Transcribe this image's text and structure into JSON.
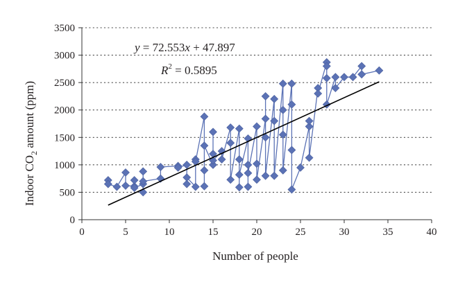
{
  "chart_data": {
    "type": "scatter",
    "xlabel": "Number of people",
    "ylabel_prefix": "Indoor CO",
    "ylabel_sub": "2",
    "ylabel_suffix": " amount (ppm)",
    "xlim": [
      0,
      40
    ],
    "ylim": [
      0,
      3500
    ],
    "x_ticks": [
      0,
      5,
      10,
      15,
      20,
      25,
      30,
      35,
      40
    ],
    "y_ticks": [
      0,
      500,
      1000,
      1500,
      2000,
      2500,
      3000,
      3500
    ],
    "grid": "horizontal dotted",
    "legend": "none",
    "series_color": "#5b72b5",
    "trendline_color": "#000000",
    "trendline": {
      "slope": 72.553,
      "intercept": 47.897,
      "x_range": [
        3,
        34
      ]
    },
    "equation_label": {
      "y": "y",
      "eq": " = 72.553",
      "x": "x",
      "rest": " + 47.897"
    },
    "r2_label": {
      "R": "R",
      "sup": "2",
      "rest": " = 0.5895"
    },
    "points": [
      {
        "x": 3,
        "y": 720
      },
      {
        "x": 3,
        "y": 650
      },
      {
        "x": 4,
        "y": 600
      },
      {
        "x": 5,
        "y": 860
      },
      {
        "x": 5,
        "y": 620
      },
      {
        "x": 6,
        "y": 610
      },
      {
        "x": 6,
        "y": 720
      },
      {
        "x": 6,
        "y": 580
      },
      {
        "x": 7,
        "y": 650
      },
      {
        "x": 7,
        "y": 500
      },
      {
        "x": 7,
        "y": 880
      },
      {
        "x": 7,
        "y": 700
      },
      {
        "x": 9,
        "y": 750
      },
      {
        "x": 9,
        "y": 960
      },
      {
        "x": 11,
        "y": 980
      },
      {
        "x": 11,
        "y": 950
      },
      {
        "x": 12,
        "y": 1000
      },
      {
        "x": 12,
        "y": 650
      },
      {
        "x": 12,
        "y": 770
      },
      {
        "x": 13,
        "y": 600
      },
      {
        "x": 13,
        "y": 1100
      },
      {
        "x": 13,
        "y": 1060
      },
      {
        "x": 14,
        "y": 1880
      },
      {
        "x": 14,
        "y": 900
      },
      {
        "x": 14,
        "y": 610
      },
      {
        "x": 14,
        "y": 1350
      },
      {
        "x": 15,
        "y": 1000
      },
      {
        "x": 15,
        "y": 1600
      },
      {
        "x": 15,
        "y": 1200
      },
      {
        "x": 15,
        "y": 1080
      },
      {
        "x": 16,
        "y": 1250
      },
      {
        "x": 16,
        "y": 1100
      },
      {
        "x": 17,
        "y": 1680
      },
      {
        "x": 17,
        "y": 1400
      },
      {
        "x": 17,
        "y": 730
      },
      {
        "x": 18,
        "y": 1660
      },
      {
        "x": 18,
        "y": 1100
      },
      {
        "x": 18,
        "y": 590
      },
      {
        "x": 18,
        "y": 820
      },
      {
        "x": 19,
        "y": 1480
      },
      {
        "x": 19,
        "y": 1000
      },
      {
        "x": 19,
        "y": 600
      },
      {
        "x": 19,
        "y": 850
      },
      {
        "x": 20,
        "y": 1700
      },
      {
        "x": 20,
        "y": 1020
      },
      {
        "x": 20,
        "y": 730
      },
      {
        "x": 21,
        "y": 1840
      },
      {
        "x": 21,
        "y": 2250
      },
      {
        "x": 21,
        "y": 1500
      },
      {
        "x": 21,
        "y": 800
      },
      {
        "x": 22,
        "y": 2200
      },
      {
        "x": 22,
        "y": 1800
      },
      {
        "x": 22,
        "y": 800
      },
      {
        "x": 23,
        "y": 2480
      },
      {
        "x": 23,
        "y": 2000
      },
      {
        "x": 23,
        "y": 1550
      },
      {
        "x": 23,
        "y": 900
      },
      {
        "x": 24,
        "y": 2480
      },
      {
        "x": 24,
        "y": 2100
      },
      {
        "x": 24,
        "y": 1270
      },
      {
        "x": 24,
        "y": 550
      },
      {
        "x": 25,
        "y": 950
      },
      {
        "x": 26,
        "y": 1700
      },
      {
        "x": 26,
        "y": 1800
      },
      {
        "x": 26,
        "y": 1130
      },
      {
        "x": 27,
        "y": 2400
      },
      {
        "x": 27,
        "y": 2300
      },
      {
        "x": 28,
        "y": 2870
      },
      {
        "x": 28,
        "y": 2800
      },
      {
        "x": 28,
        "y": 2580
      },
      {
        "x": 28,
        "y": 2100
      },
      {
        "x": 29,
        "y": 2600
      },
      {
        "x": 29,
        "y": 2400
      },
      {
        "x": 30,
        "y": 2600
      },
      {
        "x": 31,
        "y": 2600
      },
      {
        "x": 32,
        "y": 2800
      },
      {
        "x": 32,
        "y": 2650
      },
      {
        "x": 34,
        "y": 2720
      }
    ]
  }
}
